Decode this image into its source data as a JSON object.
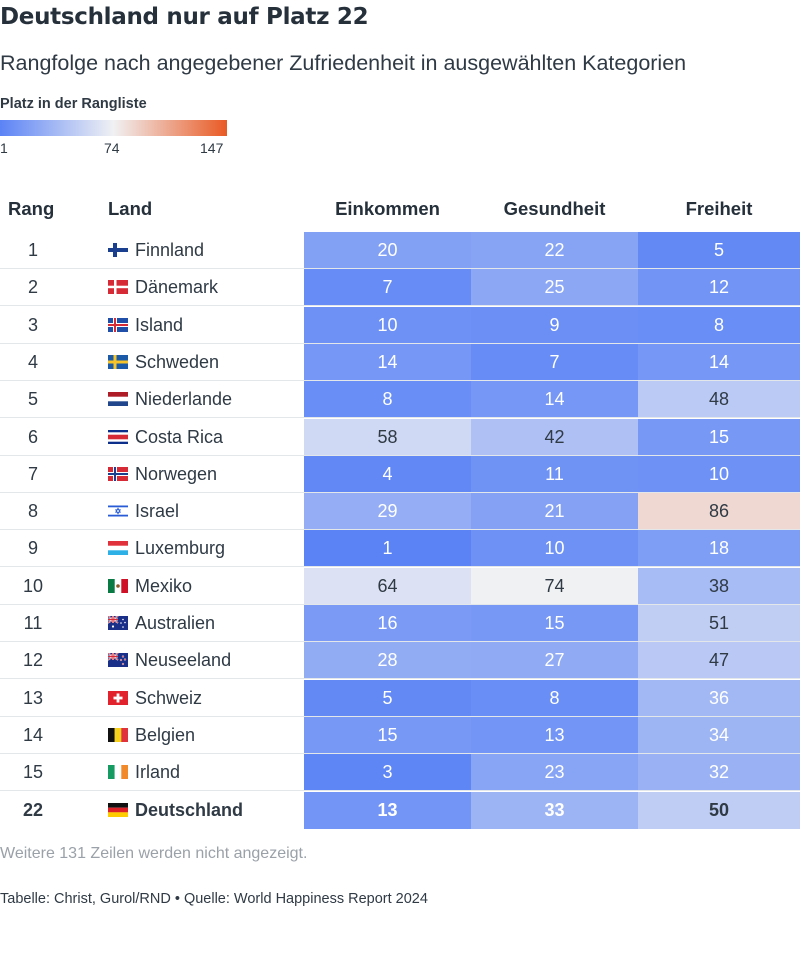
{
  "title": "Deutschland nur auf Platz 22",
  "subtitle": "Rangfolge nach angegebener Zufriedenheit in ausgewählten Kategorien",
  "legend": {
    "title": "Platz in der Rangliste",
    "min": "1",
    "mid": "74",
    "max": "147"
  },
  "colors": {
    "low": "#5b83f5",
    "mid": "#f0f1f3",
    "high": "#e95a24"
  },
  "note": "Weitere 131 Zeilen werden nicht angezeigt.",
  "source": "Tabelle: Christ, Gurol/RND • Quelle: World Happiness Report 2024",
  "chart_data": {
    "type": "table",
    "columns": [
      "Rang",
      "Land",
      "Einkommen",
      "Gesundheit",
      "Freiheit"
    ],
    "color_scale": {
      "min": 1,
      "mid": 74,
      "max": 147
    },
    "rows": [
      {
        "rank": "1",
        "country": "Finnland",
        "flag": "finland-flag",
        "values": [
          20,
          22,
          5
        ]
      },
      {
        "rank": "2",
        "country": "Dänemark",
        "flag": "denmark-flag",
        "values": [
          7,
          25,
          12
        ]
      },
      {
        "rank": "3",
        "country": "Island",
        "flag": "iceland-flag",
        "values": [
          10,
          9,
          8
        ]
      },
      {
        "rank": "4",
        "country": "Schweden",
        "flag": "sweden-flag",
        "values": [
          14,
          7,
          14
        ]
      },
      {
        "rank": "5",
        "country": "Niederlande",
        "flag": "netherlands-flag",
        "values": [
          8,
          14,
          48
        ]
      },
      {
        "rank": "6",
        "country": "Costa Rica",
        "flag": "costa-rica-flag",
        "values": [
          58,
          42,
          15
        ]
      },
      {
        "rank": "7",
        "country": "Norwegen",
        "flag": "norway-flag",
        "values": [
          4,
          11,
          10
        ]
      },
      {
        "rank": "8",
        "country": "Israel",
        "flag": "israel-flag",
        "values": [
          29,
          21,
          86
        ]
      },
      {
        "rank": "9",
        "country": "Luxemburg",
        "flag": "luxembourg-flag",
        "values": [
          1,
          10,
          18
        ]
      },
      {
        "rank": "10",
        "country": "Mexiko",
        "flag": "mexico-flag",
        "values": [
          64,
          74,
          38
        ]
      },
      {
        "rank": "11",
        "country": "Australien",
        "flag": "australia-flag",
        "values": [
          16,
          15,
          51
        ]
      },
      {
        "rank": "12",
        "country": "Neuseeland",
        "flag": "new-zealand-flag",
        "values": [
          28,
          27,
          47
        ]
      },
      {
        "rank": "13",
        "country": "Schweiz",
        "flag": "switzerland-flag",
        "values": [
          5,
          8,
          36
        ]
      },
      {
        "rank": "14",
        "country": "Belgien",
        "flag": "belgium-flag",
        "values": [
          15,
          13,
          34
        ]
      },
      {
        "rank": "15",
        "country": "Irland",
        "flag": "ireland-flag",
        "values": [
          3,
          23,
          32
        ]
      },
      {
        "rank": "22",
        "country": "Deutschland",
        "flag": "germany-flag",
        "values": [
          13,
          33,
          50
        ],
        "highlight": true
      }
    ]
  }
}
